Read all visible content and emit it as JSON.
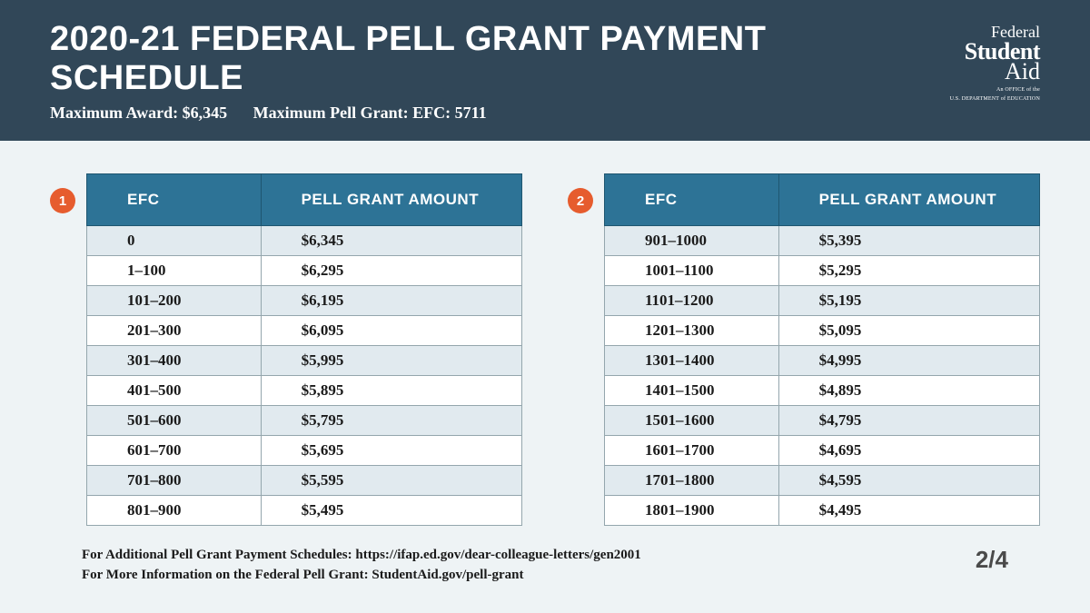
{
  "header": {
    "title": "2020-21 FEDERAL PELL GRANT PAYMENT SCHEDULE",
    "max_award": "Maximum Award: $6,345",
    "max_efc": "Maximum Pell Grant: EFC: 5711",
    "logo": {
      "line1": "Federal",
      "line2": "Student",
      "line3": "Aid",
      "sub1": "An OFFICE of the",
      "sub2": "U.S. DEPARTMENT of EDUCATION"
    }
  },
  "tables": {
    "col_efc": "EFC",
    "col_amount": "PELL GRANT AMOUNT",
    "table1": {
      "badge": "1",
      "rows": [
        {
          "efc": "0",
          "amt": "$6,345"
        },
        {
          "efc": "1–100",
          "amt": "$6,295"
        },
        {
          "efc": "101–200",
          "amt": "$6,195"
        },
        {
          "efc": "201–300",
          "amt": "$6,095"
        },
        {
          "efc": "301–400",
          "amt": "$5,995"
        },
        {
          "efc": "401–500",
          "amt": "$5,895"
        },
        {
          "efc": "501–600",
          "amt": "$5,795"
        },
        {
          "efc": "601–700",
          "amt": "$5,695"
        },
        {
          "efc": "701–800",
          "amt": "$5,595"
        },
        {
          "efc": "801–900",
          "amt": "$5,495"
        }
      ]
    },
    "table2": {
      "badge": "2",
      "rows": [
        {
          "efc": "901–1000",
          "amt": "$5,395"
        },
        {
          "efc": "1001–1100",
          "amt": "$5,295"
        },
        {
          "efc": "1101–1200",
          "amt": "$5,195"
        },
        {
          "efc": "1201–1300",
          "amt": "$5,095"
        },
        {
          "efc": "1301–1400",
          "amt": "$4,995"
        },
        {
          "efc": "1401–1500",
          "amt": "$4,895"
        },
        {
          "efc": "1501–1600",
          "amt": "$4,795"
        },
        {
          "efc": "1601–1700",
          "amt": "$4,695"
        },
        {
          "efc": "1701–1800",
          "amt": "$4,595"
        },
        {
          "efc": "1801–1900",
          "amt": "$4,495"
        }
      ]
    }
  },
  "footer": {
    "line1": "For Additional Pell Grant Payment Schedules: https://ifap.ed.gov/dear-colleague-letters/gen2001",
    "line2": "For More Information on the Federal Pell Grant: StudentAid.gov/pell-grant",
    "page": "2/4"
  },
  "style": {
    "header_bg": "#314758",
    "page_bg": "#eef3f5",
    "th_bg": "#2d7396",
    "badge_bg": "#e65c2e",
    "row_odd_bg": "#e1eaef",
    "row_even_bg": "#ffffff",
    "cell_border": "#94a6ad"
  }
}
